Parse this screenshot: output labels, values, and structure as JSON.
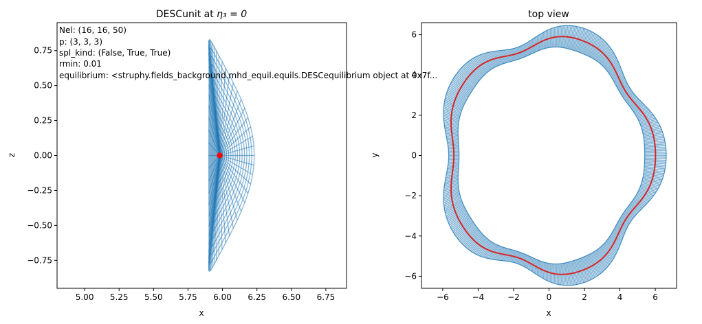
{
  "chart_data": [
    {
      "type": "line",
      "title": "DESCunit at ",
      "title_math": "η₃ = 0",
      "xlabel": "x",
      "ylabel": "z",
      "xlim": [
        4.8,
        6.9
      ],
      "ylim": [
        -0.95,
        0.95
      ],
      "xticks": [
        "5.00",
        "5.25",
        "5.50",
        "5.75",
        "6.00",
        "6.25",
        "6.50",
        "6.75"
      ],
      "yticks": [
        "-0.75",
        "-0.50",
        "-0.25",
        "0.00",
        "0.25",
        "0.50",
        "0.75"
      ],
      "grid": false,
      "series": [
        {
          "name": "flux surfaces (eta1 = const)",
          "color": "#1f77b4",
          "count": 16
        },
        {
          "name": "poloidal grid lines (eta2 = const)",
          "color": "#1f77b4",
          "count": 64
        },
        {
          "name": "magnetic axis",
          "color": "#ff0000",
          "x": 5.98,
          "z": 0.0
        }
      ],
      "annotation": [
        "Nel: (16, 16, 50)",
        "p: (3, 3, 3)",
        "spl_kind: (False, True, True)",
        "rmin: 0.01",
        "equilibrium: <struphy.fields_background.mhd_equil.equils.DESCequilibrium object at 0x7f..."
      ]
    },
    {
      "type": "line",
      "title": "top view",
      "xlabel": "x",
      "ylabel": "y",
      "xlim": [
        -7.2,
        7.2
      ],
      "ylim": [
        -6.6,
        6.6
      ],
      "xticks": [
        "-6",
        "-4",
        "-2",
        "0",
        "2",
        "4",
        "6"
      ],
      "yticks": [
        "-6",
        "-4",
        "-2",
        "0",
        "2",
        "4",
        "6"
      ],
      "grid": false,
      "series": [
        {
          "name": "plasma boundary band (top view)",
          "color": "#1f77b4",
          "field_periods": 5,
          "mean_radius": 5.8,
          "half_width": 0.45
        },
        {
          "name": "magnetic axis",
          "color": "#d62728",
          "field_periods": 5,
          "mean_radius": 5.75
        }
      ]
    }
  ]
}
